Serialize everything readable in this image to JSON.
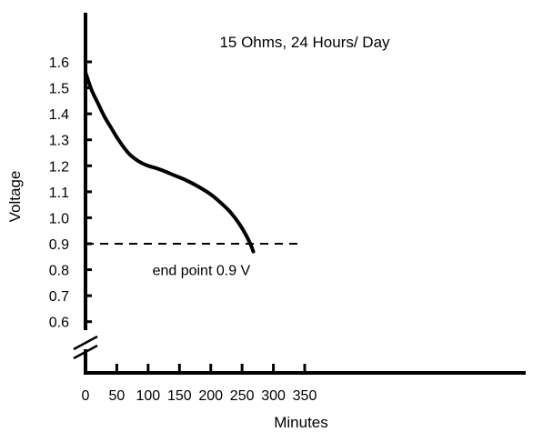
{
  "chart_data": {
    "type": "line",
    "title": "15 Ohms, 24 Hours/ Day",
    "xlabel": "Minutes",
    "ylabel": "Voltage",
    "xlim": [
      0,
      350
    ],
    "ylim": [
      0.6,
      1.6
    ],
    "y_axis_break": true,
    "grid": false,
    "x_ticks": [
      0,
      50,
      100,
      150,
      200,
      250,
      300,
      350
    ],
    "y_ticks": [
      0.6,
      0.7,
      0.8,
      0.9,
      1.0,
      1.1,
      1.2,
      1.3,
      1.4,
      1.5,
      1.6
    ],
    "x_tick_labels": [
      "0",
      "50",
      "100",
      "150",
      "200",
      "250",
      "300",
      "350"
    ],
    "y_tick_labels": [
      "0.6",
      "0.7",
      "0.8",
      "0.9",
      "1.0",
      "1.1",
      "1.2",
      "1.3",
      "1.4",
      "1.5",
      "1.6"
    ],
    "series": [
      {
        "x": [
          0,
          10,
          20,
          30,
          40,
          50,
          60,
          70,
          80,
          90,
          100,
          120,
          140,
          160,
          180,
          200,
          215,
          230,
          240,
          250,
          258,
          264,
          268
        ],
        "y": [
          1.56,
          1.49,
          1.44,
          1.39,
          1.35,
          1.31,
          1.275,
          1.245,
          1.225,
          1.21,
          1.2,
          1.185,
          1.165,
          1.145,
          1.12,
          1.09,
          1.06,
          1.025,
          0.995,
          0.96,
          0.925,
          0.895,
          0.87
        ]
      }
    ],
    "reference_line": {
      "y": 0.9,
      "x_range": [
        0,
        340
      ],
      "style": "dashed",
      "label": "end point 0.9 V",
      "label_x": 185,
      "label_y": 0.8
    },
    "colors": {
      "line": "#000000",
      "background": "#ffffff"
    }
  }
}
